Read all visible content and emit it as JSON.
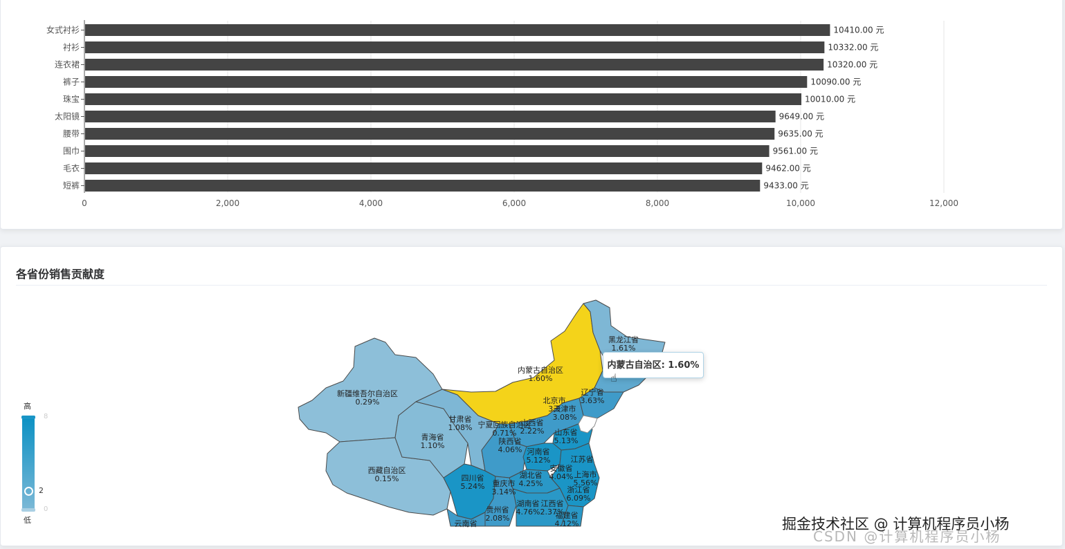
{
  "top_chart": {
    "chart_data": {
      "type": "bar",
      "orientation": "horizontal",
      "categories": [
        "女式衬衫",
        "衬衫",
        "连衣裙",
        "裤子",
        "珠宝",
        "太阳镜",
        "腰带",
        "围巾",
        "毛衣",
        "短裤"
      ],
      "values": [
        10410,
        10332,
        10320,
        10090,
        10010,
        9649,
        9635,
        9561,
        9462,
        9433
      ],
      "value_labels": [
        "10410.00 元",
        "10332.00 元",
        "10320.00 元",
        "10090.00 元",
        "10010.00 元",
        "9649.00 元",
        "9635.00 元",
        "9561.00 元",
        "9462.00 元",
        "9433.00 元"
      ],
      "x_ticks": [
        "0",
        "2,000",
        "4,000",
        "6,000",
        "8,000",
        "10,000",
        "12,000"
      ],
      "xlim": [
        0,
        12000
      ],
      "grid": true,
      "bar_color": "#444444"
    }
  },
  "map_panel": {
    "title": "各省份销售贡献度",
    "tooltip": {
      "label": "内蒙古自治区: 1.60%"
    },
    "visual_map": {
      "high_label": "高",
      "low_label": "低",
      "max": "8",
      "min": "0",
      "current": "2",
      "colors": [
        "#0e92c4",
        "#7ab8d6"
      ]
    },
    "highlight_color": "#f4d31a",
    "regions": [
      {
        "name": "新疆维吾尔自治区",
        "value": "0.29%"
      },
      {
        "name": "西藏自治区",
        "value": "0.15%"
      },
      {
        "name": "青海省",
        "value": "1.10%"
      },
      {
        "name": "甘肃省",
        "value": "1.08%"
      },
      {
        "name": "内蒙古自治区",
        "value": "1.60%"
      },
      {
        "name": "黑龙江省",
        "value": "1.61%"
      },
      {
        "name": "辽宁省",
        "value": "3.63%"
      },
      {
        "name": "北京市",
        "value": "3.3"
      },
      {
        "name": "天津市",
        "value": "3.08%"
      },
      {
        "name": "宁夏回族自治区",
        "value": "0.71%"
      },
      {
        "name": "山西省",
        "value": "2.22%"
      },
      {
        "name": "陕西省",
        "value": "4.06%"
      },
      {
        "name": "山东省",
        "value": "5.13%"
      },
      {
        "name": "河南省",
        "value": "5.12%"
      },
      {
        "name": "江苏省",
        "value": ""
      },
      {
        "name": "安徽省",
        "value": "4.04%"
      },
      {
        "name": "上海市",
        "value": "5.56%"
      },
      {
        "name": "湖北省",
        "value": "4.25%"
      },
      {
        "name": "浙江省",
        "value": "6.09%"
      },
      {
        "name": "四川省",
        "value": "5.24%"
      },
      {
        "name": "重庆市",
        "value": "3.14%"
      },
      {
        "name": "湖南省",
        "value": "4.76%"
      },
      {
        "name": "江西省",
        "value": "2.37%"
      },
      {
        "name": "贵州省",
        "value": "2.08%"
      },
      {
        "name": "福建省",
        "value": "4.12%"
      },
      {
        "name": "云南省",
        "value": ""
      }
    ]
  },
  "watermark": {
    "primary": "掘金技术社区 @ 计算机程序员小杨",
    "secondary": "CSDN @计算机程序员小杨"
  }
}
